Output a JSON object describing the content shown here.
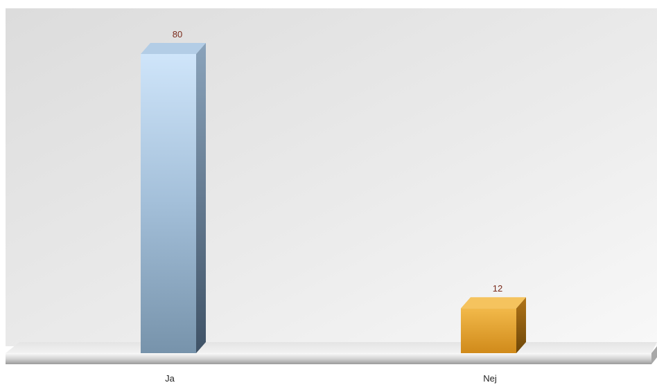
{
  "chart_data": {
    "type": "bar",
    "style": "3d-column",
    "categories": [
      "Ja",
      "Nej"
    ],
    "values": [
      80,
      12
    ],
    "colors": [
      "#8fb0cf",
      "#e0a030"
    ],
    "show_value_labels": true,
    "grid": false,
    "legend": "none",
    "title": "",
    "xlabel": "",
    "ylabel": ""
  }
}
